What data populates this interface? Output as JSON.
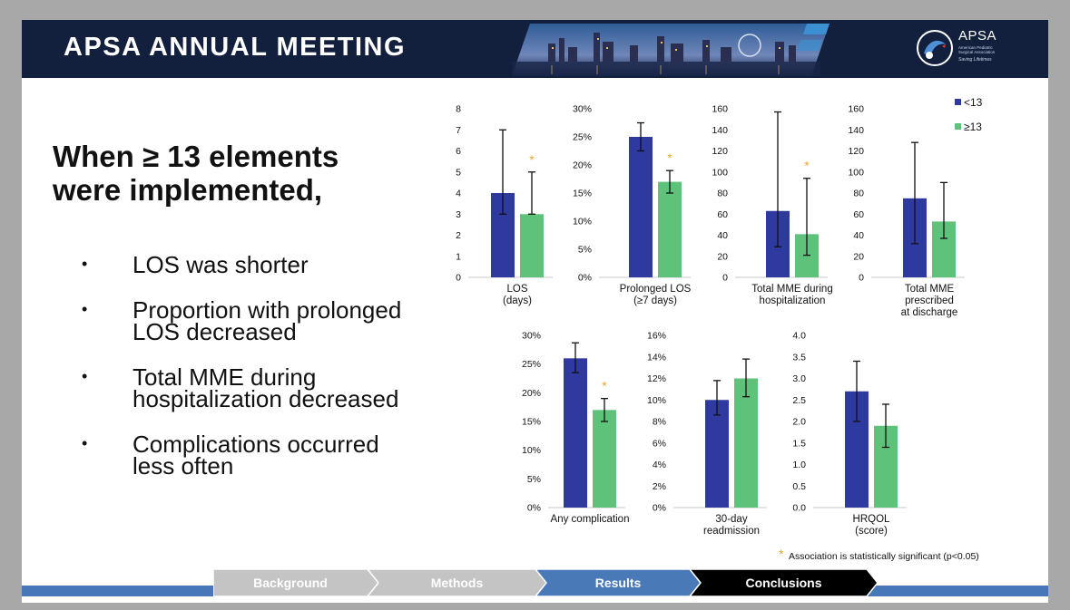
{
  "banner": {
    "title": "APSA ANNUAL MEETING",
    "logo_name": "APSA",
    "logo_subtitle": "American Pediatric Surgical Association",
    "logo_tagline": "Saving Lifetimes"
  },
  "heading": {
    "line1": "When ≥ 13 elements",
    "line2": "were implemented,"
  },
  "bullets": [
    {
      "lines": [
        "LOS was shorter"
      ]
    },
    {
      "lines": [
        "Proportion with prolonged",
        "LOS decreased"
      ]
    },
    {
      "lines": [
        "Total MME during",
        "hospitalization decreased"
      ]
    },
    {
      "lines": [
        "Complications occurred",
        "less often"
      ]
    }
  ],
  "legend": {
    "items": [
      {
        "label": "<13",
        "color": "#2e3a9f"
      },
      {
        "label": "≥13",
        "color": "#5ec27a"
      }
    ]
  },
  "colors": {
    "group_lt13": "#2e3a9f",
    "group_ge13": "#5ec27a",
    "star": "#e8a92b",
    "banner": "#13203d",
    "accent": "#4877b8"
  },
  "chart_data": [
    {
      "type": "bar",
      "xlabel": [
        "LOS",
        "(days)"
      ],
      "yticks": [
        "0",
        "1",
        "2",
        "3",
        "4",
        "5",
        "6",
        "7",
        "8"
      ],
      "ylim": [
        0,
        8
      ],
      "series": [
        {
          "name": "<13",
          "values": [
            4.0
          ],
          "error": [
            3.0,
            7.0
          ]
        },
        {
          "name": "≥13",
          "values": [
            3.0
          ],
          "error": [
            3.0,
            5.0
          ]
        }
      ],
      "significant": true
    },
    {
      "type": "bar",
      "xlabel": [
        "Prolonged LOS",
        "(≥7 days)"
      ],
      "yticks": [
        "0%",
        "5%",
        "10%",
        "15%",
        "20%",
        "25%",
        "30%"
      ],
      "ylim": [
        0,
        30
      ],
      "series": [
        {
          "name": "<13",
          "values": [
            25
          ],
          "error": [
            22.5,
            27.5
          ]
        },
        {
          "name": "≥13",
          "values": [
            17
          ],
          "error": [
            15,
            19
          ]
        }
      ],
      "significant": true
    },
    {
      "type": "bar",
      "xlabel": [
        "Total MME during",
        "hospitalization"
      ],
      "yticks": [
        "0",
        "20",
        "40",
        "60",
        "80",
        "100",
        "120",
        "140",
        "160"
      ],
      "ylim": [
        0,
        160
      ],
      "series": [
        {
          "name": "<13",
          "values": [
            63
          ],
          "error": [
            29,
            157
          ]
        },
        {
          "name": "≥13",
          "values": [
            41
          ],
          "error": [
            21,
            94
          ]
        }
      ],
      "significant": true
    },
    {
      "type": "bar",
      "xlabel": [
        "Total MME",
        "prescribed",
        "at discharge"
      ],
      "yticks": [
        "0",
        "20",
        "40",
        "60",
        "80",
        "100",
        "120",
        "140",
        "160"
      ],
      "ylim": [
        0,
        160
      ],
      "series": [
        {
          "name": "<13",
          "values": [
            75
          ],
          "error": [
            32,
            128
          ]
        },
        {
          "name": "≥13",
          "values": [
            53
          ],
          "error": [
            37,
            90
          ]
        }
      ],
      "significant": false
    },
    {
      "type": "bar",
      "xlabel": [
        "Any complication"
      ],
      "yticks": [
        "0%",
        "5%",
        "10%",
        "15%",
        "20%",
        "25%",
        "30%"
      ],
      "ylim": [
        0,
        30
      ],
      "series": [
        {
          "name": "<13",
          "values": [
            26
          ],
          "error": [
            23.5,
            28.7
          ]
        },
        {
          "name": "≥13",
          "values": [
            17
          ],
          "error": [
            15,
            19
          ]
        }
      ],
      "significant": true
    },
    {
      "type": "bar",
      "xlabel": [
        "30-day",
        "readmission"
      ],
      "yticks": [
        "0%",
        "2%",
        "4%",
        "6%",
        "8%",
        "10%",
        "12%",
        "14%",
        "16%"
      ],
      "ylim": [
        0,
        16
      ],
      "series": [
        {
          "name": "<13",
          "values": [
            10
          ],
          "error": [
            8.6,
            11.8
          ]
        },
        {
          "name": "≥13",
          "values": [
            12
          ],
          "error": [
            10.3,
            13.8
          ]
        }
      ],
      "significant": false
    },
    {
      "type": "bar",
      "xlabel": [
        "HRQOL",
        "(score)"
      ],
      "yticks": [
        "0.0",
        "0.5",
        "1.0",
        "1.5",
        "2.0",
        "2.5",
        "3.0",
        "3.5",
        "4.0"
      ],
      "ylim": [
        0,
        4
      ],
      "series": [
        {
          "name": "<13",
          "values": [
            2.7
          ],
          "error": [
            2.0,
            3.4
          ]
        },
        {
          "name": "≥13",
          "values": [
            1.9
          ],
          "error": [
            1.4,
            2.4
          ]
        }
      ],
      "significant": false
    }
  ],
  "footnote": {
    "star": "*",
    "text": "Association is statistically significant  (p<0.05)"
  },
  "nav": {
    "items": [
      {
        "label": "Background",
        "color": "#c4c4c4"
      },
      {
        "label": "Methods",
        "color": "#c4c4c4"
      },
      {
        "label": "Results",
        "color": "#4a79b8"
      },
      {
        "label": "Conclusions",
        "color": "#000000"
      }
    ]
  }
}
